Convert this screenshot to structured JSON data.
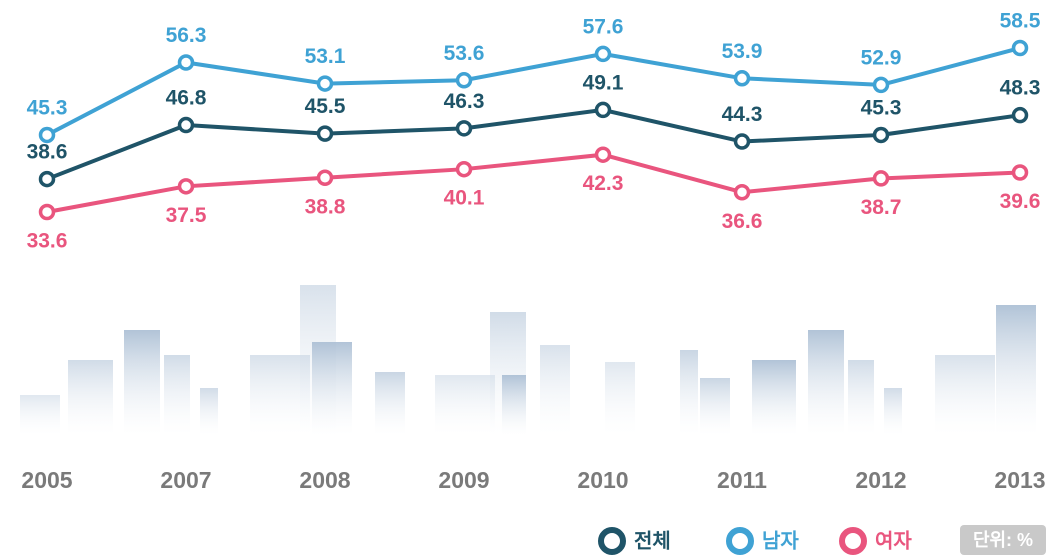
{
  "chart_data": {
    "type": "line",
    "categories": [
      "2005",
      "2007",
      "2008",
      "2009",
      "2010",
      "2011",
      "2012",
      "2013"
    ],
    "series": [
      {
        "name": "남자",
        "color": "#3fa2d4",
        "values": [
          45.3,
          56.3,
          53.1,
          53.6,
          57.6,
          53.9,
          52.9,
          58.5
        ]
      },
      {
        "name": "전체",
        "color": "#1f5468",
        "values": [
          38.6,
          46.8,
          45.5,
          46.3,
          49.1,
          44.3,
          45.3,
          48.3
        ]
      },
      {
        "name": "여자",
        "color": "#e9557e",
        "values": [
          33.6,
          37.5,
          38.8,
          40.1,
          42.3,
          36.6,
          38.7,
          39.6
        ]
      }
    ],
    "legend_order": [
      "전체",
      "남자",
      "여자"
    ],
    "unit_label": "단위: %"
  }
}
